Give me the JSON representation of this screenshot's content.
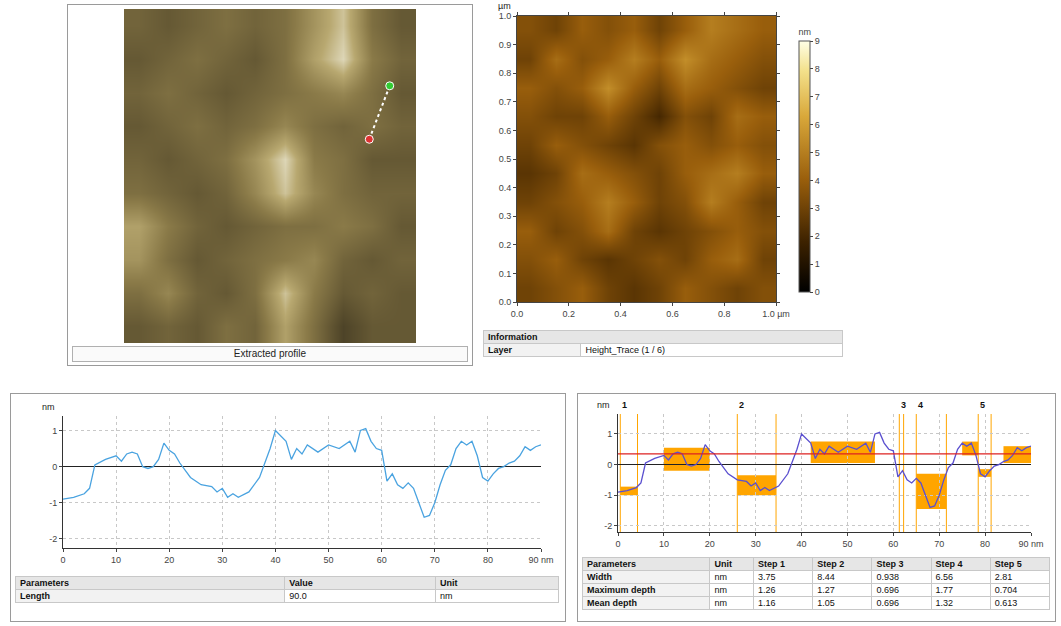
{
  "chart_data": [
    {
      "type": "image",
      "caption": "Extracted profile",
      "tick_labels": false,
      "xlim": [
        0,
        1
      ],
      "ylim": [
        0,
        1
      ],
      "zlim": [
        0,
        9
      ],
      "x": [
        0.05,
        0.15,
        0.25,
        0.35,
        0.45,
        0.55,
        0.65,
        0.75,
        0.85,
        0.95
      ],
      "y": [
        0.05,
        0.15,
        0.25,
        0.35,
        0.45,
        0.55,
        0.65,
        0.75,
        0.85,
        0.95
      ],
      "cells": [
        [
          3,
          3.5,
          3,
          4,
          3.5,
          6,
          4,
          2,
          3,
          3
        ],
        [
          4,
          5,
          3.5,
          3,
          4,
          7,
          4.5,
          3,
          3.5,
          3
        ],
        [
          5.5,
          4,
          3,
          3.5,
          4,
          4.5,
          5,
          3.5,
          3,
          3.5
        ],
        [
          6,
          4.5,
          3.5,
          3,
          3.5,
          4,
          4,
          4.5,
          4,
          3
        ],
        [
          4,
          3.5,
          3,
          3.5,
          5,
          7,
          5,
          4,
          3.5,
          3.5
        ],
        [
          3.5,
          3,
          3.5,
          4,
          5.5,
          7.5,
          4.5,
          4,
          3,
          3
        ],
        [
          3,
          3.5,
          4,
          3.5,
          4,
          5,
          4,
          3.5,
          4,
          3.5
        ],
        [
          3.5,
          4,
          3.5,
          3,
          3.5,
          4,
          4.5,
          5,
          4,
          3
        ],
        [
          3,
          3.5,
          4,
          3.5,
          3,
          4,
          6,
          7.5,
          4.5,
          3.5
        ],
        [
          3.5,
          3,
          3.5,
          4,
          3.5,
          4,
          5.5,
          7,
          4,
          3
        ]
      ],
      "profile_line": {
        "x": [
          0.84,
          0.91
        ],
        "y": [
          0.61,
          0.77
        ],
        "colors": [
          "#dd3333",
          "#33cc33"
        ]
      }
    },
    {
      "type": "heatmap",
      "y_label": "µm",
      "xlim": [
        0,
        1
      ],
      "ylim": [
        0,
        1
      ],
      "xticks": [
        {
          "value": 0,
          "label": "0.0"
        },
        {
          "value": 0.2,
          "label": "0.2"
        },
        {
          "value": 0.4,
          "label": "0.4"
        },
        {
          "value": 0.6,
          "label": "0.6"
        },
        {
          "value": 0.8,
          "label": "0.8"
        },
        {
          "value": 1,
          "label": "1.0 µm"
        }
      ],
      "yticks": [
        {
          "value": 0,
          "label": "0.0"
        },
        {
          "value": 0.1,
          "label": "0.1"
        },
        {
          "value": 0.2,
          "label": "0.2"
        },
        {
          "value": 0.3,
          "label": "0.3"
        },
        {
          "value": 0.4,
          "label": "0.4"
        },
        {
          "value": 0.5,
          "label": "0.5"
        },
        {
          "value": 0.6,
          "label": "0.6"
        },
        {
          "value": 0.7,
          "label": "0.7"
        },
        {
          "value": 0.8,
          "label": "0.8"
        },
        {
          "value": 0.9,
          "label": "0.9"
        },
        {
          "value": 1,
          "label": "1.0"
        }
      ],
      "x": [
        0.05,
        0.15,
        0.25,
        0.35,
        0.45,
        0.55,
        0.65,
        0.75,
        0.85,
        0.95
      ],
      "y": [
        0.05,
        0.15,
        0.25,
        0.35,
        0.45,
        0.55,
        0.65,
        0.75,
        0.85,
        0.95
      ],
      "cells": [
        [
          3,
          3.5,
          4,
          3,
          2.5,
          3,
          4,
          3.5,
          3,
          3.5
        ],
        [
          3.5,
          4,
          3,
          2.5,
          3,
          3.5,
          3,
          4,
          4.5,
          3
        ],
        [
          4,
          3,
          3.5,
          4.5,
          3,
          2.5,
          3,
          3.5,
          4,
          3.5
        ],
        [
          3,
          3.5,
          4,
          5,
          4,
          3,
          3.5,
          5,
          4,
          3
        ],
        [
          2.5,
          3,
          4.5,
          4,
          3.5,
          3,
          4,
          4.5,
          5,
          4
        ],
        [
          3,
          4,
          3.5,
          3,
          2.5,
          3.5,
          4,
          3.5,
          4,
          3.5
        ],
        [
          3.5,
          3,
          3,
          4,
          3,
          2,
          3.5,
          3,
          4.5,
          4
        ],
        [
          4,
          3.5,
          4,
          5.5,
          4,
          3,
          4.5,
          4,
          3.5,
          3
        ],
        [
          3,
          4.5,
          3.5,
          4,
          5,
          4,
          5.5,
          4.5,
          4,
          3.5
        ],
        [
          3.5,
          3,
          4,
          3.5,
          4,
          3,
          4,
          5,
          4.5,
          4
        ]
      ],
      "colorbar": {
        "title": "nm",
        "range": [
          0,
          9
        ],
        "ticks": [
          0,
          1,
          2,
          3,
          4,
          5,
          6,
          7,
          8,
          9
        ]
      },
      "info": {
        "title": "Information",
        "rows": [
          [
            "Layer",
            "Height_Trace (1 / 6)"
          ]
        ]
      }
    },
    {
      "type": "line",
      "y_label": "nm",
      "grid": true,
      "color": "#4aa3e0",
      "xlim": [
        0,
        90
      ],
      "ylim": [
        -2.25,
        1.4
      ],
      "xticks": [
        0,
        10,
        20,
        30,
        40,
        50,
        60,
        70,
        80,
        {
          "value": 90,
          "label": "90 nm"
        }
      ],
      "yticks": [
        -2,
        -1,
        0,
        1
      ],
      "x": [
        0,
        2,
        4,
        5,
        6,
        8,
        10,
        11,
        12,
        13,
        14,
        15,
        16,
        17,
        18,
        19,
        20,
        21,
        22,
        24,
        26,
        28,
        29,
        30,
        31,
        32,
        33,
        35,
        37,
        39,
        40,
        41,
        42,
        43,
        44,
        45,
        46,
        48,
        50,
        52,
        54,
        55,
        56,
        57,
        58,
        59,
        60,
        61,
        62,
        63,
        64,
        65,
        66,
        67,
        68,
        69,
        70,
        71,
        72,
        73,
        74,
        75,
        76,
        77,
        78,
        79,
        80,
        81,
        82,
        83,
        84,
        85,
        86,
        87,
        88,
        89,
        90
      ],
      "values": [
        -0.9,
        -0.85,
        -0.75,
        -0.6,
        0.05,
        0.2,
        0.3,
        0.15,
        0.35,
        0.4,
        0.35,
        0,
        -0.05,
        0,
        0.2,
        0.65,
        0.45,
        0.35,
        0.1,
        -0.3,
        -0.5,
        -0.55,
        -0.7,
        -0.6,
        -0.85,
        -0.75,
        -0.85,
        -0.7,
        -0.3,
        0.5,
        1.0,
        0.85,
        0.7,
        0.2,
        0.5,
        0.35,
        0.6,
        0.4,
        0.6,
        0.5,
        0.7,
        0.4,
        1.0,
        1.05,
        0.7,
        0.5,
        0.45,
        -0.4,
        -0.2,
        -0.5,
        -0.6,
        -0.45,
        -0.6,
        -1.0,
        -1.4,
        -1.35,
        -1.0,
        -0.5,
        -0.1,
        0.05,
        0.5,
        0.7,
        0.6,
        0.7,
        0.3,
        -0.3,
        -0.4,
        -0.2,
        -0.05,
        0,
        0.1,
        0.15,
        0.3,
        0.55,
        0.45,
        0.55,
        0.6
      ],
      "table": {
        "header": [
          "Parameters",
          "Value",
          "Unit"
        ],
        "rows": [
          [
            "Length",
            "90.0",
            "nm"
          ]
        ]
      }
    },
    {
      "type": "line",
      "y_label": "nm",
      "grid": true,
      "color": "#5a4fcf",
      "xlim": [
        0,
        90
      ],
      "ylim": [
        -2.2,
        1.65
      ],
      "xticks": [
        0,
        10,
        20,
        30,
        40,
        50,
        60,
        70,
        80,
        {
          "value": 90,
          "label": "90 nm"
        }
      ],
      "yticks": [
        -2,
        -1,
        0,
        1
      ],
      "x": [
        0,
        2,
        4,
        5,
        6,
        8,
        10,
        11,
        12,
        13,
        14,
        15,
        16,
        17,
        18,
        19,
        20,
        21,
        22,
        24,
        26,
        28,
        29,
        30,
        31,
        32,
        33,
        35,
        37,
        39,
        40,
        41,
        42,
        43,
        44,
        45,
        46,
        48,
        50,
        52,
        54,
        55,
        56,
        57,
        58,
        59,
        60,
        61,
        62,
        63,
        64,
        65,
        66,
        67,
        68,
        69,
        70,
        71,
        72,
        73,
        74,
        75,
        76,
        77,
        78,
        79,
        80,
        81,
        82,
        83,
        84,
        85,
        86,
        87,
        88,
        89,
        90
      ],
      "values": [
        -0.9,
        -0.85,
        -0.75,
        -0.6,
        0.05,
        0.2,
        0.3,
        0.15,
        0.35,
        0.4,
        0.35,
        0,
        -0.05,
        0,
        0.2,
        0.65,
        0.45,
        0.35,
        0.1,
        -0.3,
        -0.5,
        -0.55,
        -0.7,
        -0.6,
        -0.85,
        -0.75,
        -0.85,
        -0.7,
        -0.3,
        0.5,
        1.0,
        0.85,
        0.7,
        0.2,
        0.5,
        0.35,
        0.6,
        0.4,
        0.6,
        0.5,
        0.7,
        0.4,
        1.0,
        1.05,
        0.7,
        0.5,
        0.45,
        -0.4,
        -0.2,
        -0.5,
        -0.6,
        -0.45,
        -0.6,
        -1.0,
        -1.4,
        -1.35,
        -1.0,
        -0.5,
        -0.1,
        0.05,
        0.5,
        0.7,
        0.6,
        0.7,
        0.3,
        -0.3,
        -0.4,
        -0.2,
        -0.05,
        0,
        0.1,
        0.15,
        0.3,
        0.55,
        0.45,
        0.55,
        0.6
      ],
      "reference_line": {
        "value": 0.35,
        "color": "#dd2222"
      },
      "region_color": "#ffa500",
      "regions": [
        {
          "x": [
            0.5,
            4.25
          ],
          "y": [
            -1.0,
            -0.72
          ]
        },
        {
          "x": [
            10,
            20
          ],
          "y": [
            -0.2,
            0.55
          ]
        },
        {
          "x": [
            26,
            34.44
          ],
          "y": [
            -1.0,
            -0.35
          ]
        },
        {
          "x": [
            42,
            56
          ],
          "y": [
            0.05,
            0.75
          ]
        },
        {
          "x": [
            65,
            71.56
          ],
          "y": [
            -1.45,
            -0.3
          ]
        },
        {
          "x": [
            75,
            78.5
          ],
          "y": [
            0.3,
            0.75
          ]
        },
        {
          "x": [
            78.5,
            81.31
          ],
          "y": [
            -0.4,
            -0.15
          ]
        },
        {
          "x": [
            84,
            90
          ],
          "y": [
            0.05,
            0.6
          ]
        }
      ],
      "steps": [
        {
          "label": "1",
          "x": [
            0.5,
            4.25
          ]
        },
        {
          "label": "2",
          "x": [
            26,
            34.44
          ]
        },
        {
          "label": "3",
          "x": [
            61.3,
            62.24
          ]
        },
        {
          "label": "4",
          "x": [
            65,
            71.56
          ]
        },
        {
          "label": "5",
          "x": [
            78.5,
            81.31
          ]
        }
      ],
      "table": {
        "header": [
          "Parameters",
          "Unit",
          "Step 1",
          "Step 2",
          "Step 3",
          "Step 4",
          "Step 5"
        ],
        "rows": [
          [
            "Width",
            "nm",
            "3.75",
            "8.44",
            "0.938",
            "6.56",
            "2.81"
          ],
          [
            "Maximum depth",
            "nm",
            "1.26",
            "1.27",
            "0.696",
            "1.77",
            "0.704"
          ],
          [
            "Mean depth",
            "nm",
            "1.16",
            "1.05",
            "0.696",
            "1.32",
            "0.613"
          ]
        ]
      }
    }
  ]
}
